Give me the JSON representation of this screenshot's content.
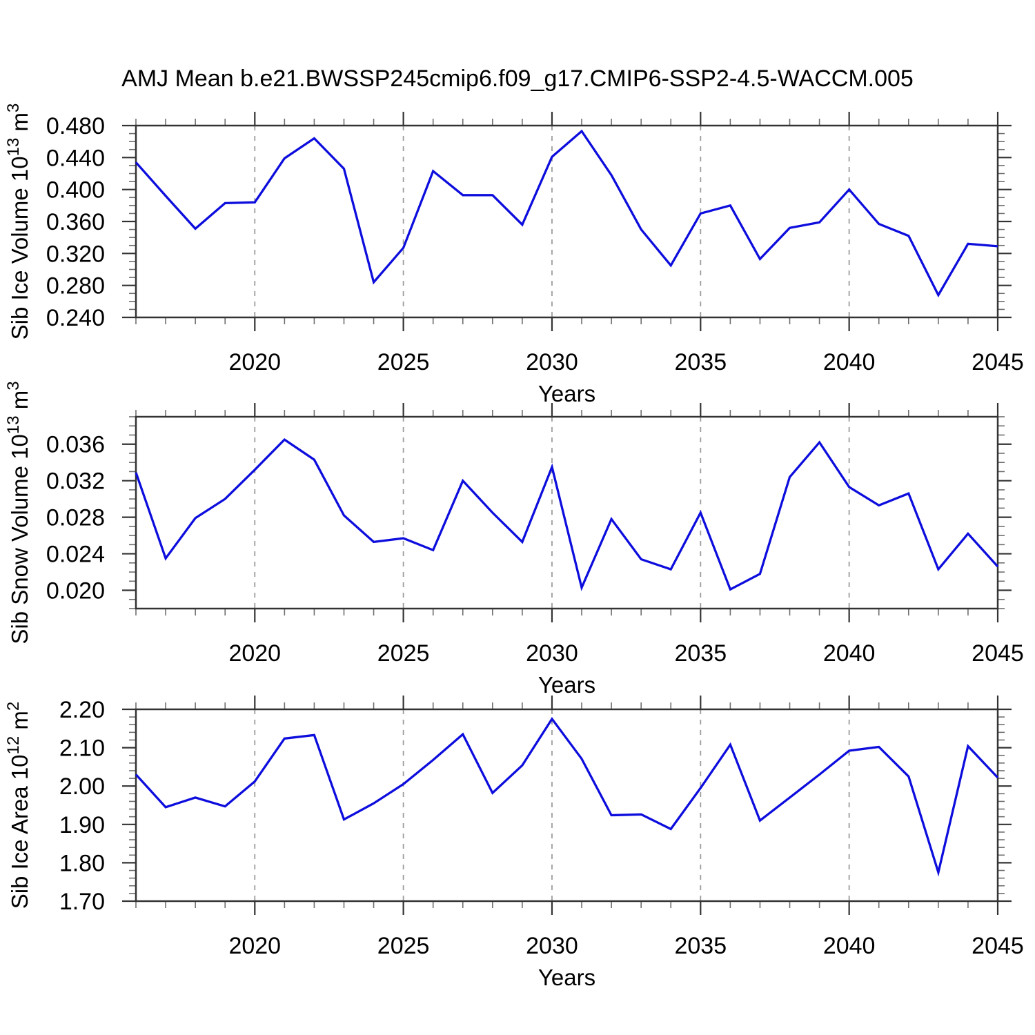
{
  "title": "AMJ Mean b.e21.BWSSP245cmip6.f09_g17.CMIP6-SSP2-4.5-WACCM.005",
  "colors": {
    "line": "#0d0ddd",
    "axis": "#333333",
    "minor_tick": "#6e6e6e",
    "grid": "#9c9c9c",
    "text": "#000000",
    "background": "#ffffff"
  },
  "x_axis": {
    "label": "Years",
    "xlim": [
      2016,
      2045
    ],
    "major_ticks": [
      2020,
      2025,
      2030,
      2035,
      2040,
      2045
    ],
    "major_tick_labels": [
      "2020",
      "2025",
      "2030",
      "2035",
      "2040",
      "2045"
    ],
    "minor_step": 1,
    "grid_ticks": [
      2020,
      2025,
      2030,
      2035,
      2040
    ]
  },
  "chart_data": [
    {
      "type": "line",
      "panel": "sib-ice-volume",
      "ylabel_text": "Sib Ice Volume 10^13 m^3",
      "ylabel_segments": [
        {
          "text": "Sib Ice Volume 10"
        },
        {
          "text": "13",
          "sup": true
        },
        {
          "text": " m"
        },
        {
          "text": "3",
          "sup": true
        }
      ],
      "ylim": [
        0.24,
        0.48
      ],
      "yticks": [
        0.24,
        0.28,
        0.32,
        0.36,
        0.4,
        0.44,
        0.48
      ],
      "ytick_labels": [
        "0.240",
        "0.280",
        "0.320",
        "0.360",
        "0.400",
        "0.440",
        "0.480"
      ],
      "yminor_step": 0.01,
      "xlabel": "Years",
      "grid": "vertical-dashed",
      "legend": "none",
      "x": [
        2016,
        2017,
        2018,
        2019,
        2020,
        2021,
        2022,
        2023,
        2024,
        2025,
        2026,
        2027,
        2028,
        2029,
        2030,
        2031,
        2032,
        2033,
        2034,
        2035,
        2036,
        2037,
        2038,
        2039,
        2040,
        2041,
        2042,
        2043,
        2044,
        2045
      ],
      "values": [
        0.434,
        0.392,
        0.351,
        0.383,
        0.384,
        0.439,
        0.464,
        0.426,
        0.284,
        0.327,
        0.423,
        0.393,
        0.393,
        0.356,
        0.441,
        0.473,
        0.418,
        0.35,
        0.305,
        0.37,
        0.38,
        0.313,
        0.352,
        0.359,
        0.4,
        0.357,
        0.342,
        0.268,
        0.332,
        0.329
      ]
    },
    {
      "type": "line",
      "panel": "sib-snow-volume",
      "ylabel_text": "Sib Snow Volume 10^13 m^3",
      "ylabel_segments": [
        {
          "text": "Sib Snow Volume 10"
        },
        {
          "text": "13",
          "sup": true
        },
        {
          "text": " m"
        },
        {
          "text": "3",
          "sup": true
        }
      ],
      "ylim": [
        0.018,
        0.039
      ],
      "yticks": [
        0.02,
        0.024,
        0.028,
        0.032,
        0.036
      ],
      "ytick_labels": [
        "0.020",
        "0.024",
        "0.028",
        "0.032",
        "0.036"
      ],
      "yminor_step": 0.001,
      "xlabel": "Years",
      "grid": "vertical-dashed",
      "legend": "none",
      "x": [
        2016,
        2017,
        2018,
        2019,
        2020,
        2021,
        2022,
        2023,
        2024,
        2025,
        2026,
        2027,
        2028,
        2029,
        2030,
        2031,
        2032,
        2033,
        2034,
        2035,
        2036,
        2037,
        2038,
        2039,
        2040,
        2041,
        2042,
        2043,
        2044,
        2045
      ],
      "values": [
        0.0329,
        0.0235,
        0.0279,
        0.03,
        0.0332,
        0.0365,
        0.0343,
        0.0282,
        0.0253,
        0.0257,
        0.0244,
        0.032,
        0.0285,
        0.0253,
        0.0335,
        0.0203,
        0.0278,
        0.0234,
        0.0223,
        0.0285,
        0.0201,
        0.0218,
        0.0324,
        0.0362,
        0.0313,
        0.0293,
        0.0306,
        0.0223,
        0.0262,
        0.0226
      ]
    },
    {
      "type": "line",
      "panel": "sib-ice-area",
      "ylabel_text": "Sib Ice Area 10^12 m^2",
      "ylabel_segments": [
        {
          "text": "Sib Ice Area 10"
        },
        {
          "text": "12",
          "sup": true
        },
        {
          "text": " m"
        },
        {
          "text": "2",
          "sup": true
        }
      ],
      "ylim": [
        1.7,
        2.2
      ],
      "yticks": [
        1.7,
        1.8,
        1.9,
        2.0,
        2.1,
        2.2
      ],
      "ytick_labels": [
        "1.70",
        "1.80",
        "1.90",
        "2.00",
        "2.10",
        "2.20"
      ],
      "yminor_step": 0.02,
      "xlabel": "Years",
      "grid": "vertical-dashed",
      "legend": "none",
      "x": [
        2016,
        2017,
        2018,
        2019,
        2020,
        2021,
        2022,
        2023,
        2024,
        2025,
        2026,
        2027,
        2028,
        2029,
        2030,
        2031,
        2032,
        2033,
        2034,
        2035,
        2036,
        2037,
        2038,
        2039,
        2040,
        2041,
        2042,
        2043,
        2044,
        2045
      ],
      "values": [
        2.03,
        1.945,
        1.97,
        1.947,
        2.012,
        2.124,
        2.133,
        1.913,
        1.955,
        2.005,
        2.068,
        2.135,
        1.982,
        2.054,
        2.175,
        2.071,
        1.924,
        1.926,
        1.888,
        1.995,
        2.108,
        1.91,
        1.97,
        2.03,
        2.092,
        2.102,
        2.025,
        1.775,
        2.104,
        2.022
      ]
    }
  ]
}
